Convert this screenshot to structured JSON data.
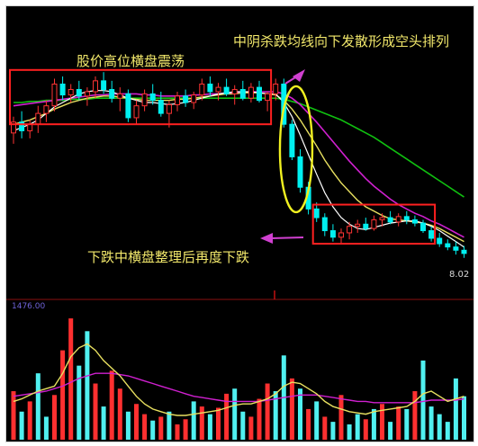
{
  "chart_data": [
    {
      "type": "candlestick",
      "annotations": {
        "top_left": "股价高位横盘震荡",
        "top_right": "中阴杀跌均线向下发散形成空头排列",
        "bottom": "下跌中横盘整理后再度下跌"
      },
      "price_label": "8.02",
      "colors": {
        "up": "#ff3333",
        "down": "#00f0f0",
        "ma_white": "#ffffff",
        "ma_yellow": "#e8e060",
        "ma_magenta": "#d020d0",
        "ma_green": "#10c010",
        "box": "#ff2020",
        "ellipse": "#f0f020",
        "arrow": "#d040d0"
      },
      "candles": [
        [
          9.1,
          9.25,
          9.0,
          9.2
        ],
        [
          9.2,
          9.3,
          9.05,
          9.12
        ],
        [
          9.12,
          9.22,
          9.05,
          9.18
        ],
        [
          9.18,
          9.35,
          9.1,
          9.28
        ],
        [
          9.28,
          9.4,
          9.2,
          9.35
        ],
        [
          9.35,
          9.6,
          9.3,
          9.55
        ],
        [
          9.55,
          9.62,
          9.4,
          9.45
        ],
        [
          9.45,
          9.55,
          9.38,
          9.5
        ],
        [
          9.5,
          9.58,
          9.4,
          9.44
        ],
        [
          9.44,
          9.52,
          9.35,
          9.48
        ],
        [
          9.48,
          9.62,
          9.42,
          9.58
        ],
        [
          9.58,
          9.66,
          9.46,
          9.5
        ],
        [
          9.5,
          9.58,
          9.38,
          9.42
        ],
        [
          9.42,
          9.52,
          9.3,
          9.46
        ],
        [
          9.46,
          9.5,
          9.2,
          9.24
        ],
        [
          9.24,
          9.4,
          9.18,
          9.35
        ],
        [
          9.35,
          9.5,
          9.3,
          9.46
        ],
        [
          9.46,
          9.55,
          9.36,
          9.4
        ],
        [
          9.4,
          9.48,
          9.25,
          9.28
        ],
        [
          9.28,
          9.4,
          9.15,
          9.36
        ],
        [
          9.36,
          9.48,
          9.3,
          9.44
        ],
        [
          9.44,
          9.5,
          9.34,
          9.38
        ],
        [
          9.38,
          9.48,
          9.32,
          9.45
        ],
        [
          9.45,
          9.6,
          9.4,
          9.55
        ],
        [
          9.55,
          9.62,
          9.44,
          9.48
        ],
        [
          9.48,
          9.56,
          9.4,
          9.52
        ],
        [
          9.52,
          9.6,
          9.44,
          9.46
        ],
        [
          9.46,
          9.54,
          9.36,
          9.5
        ],
        [
          9.5,
          9.58,
          9.4,
          9.42
        ],
        [
          9.42,
          9.56,
          9.38,
          9.52
        ],
        [
          9.52,
          9.58,
          9.38,
          9.4
        ],
        [
          9.4,
          9.48,
          9.3,
          9.46
        ],
        [
          9.46,
          9.6,
          9.4,
          9.55
        ],
        [
          9.55,
          9.6,
          9.15,
          9.18
        ],
        [
          9.18,
          9.22,
          8.85,
          8.88
        ],
        [
          8.88,
          8.95,
          8.55,
          8.6
        ],
        [
          8.6,
          8.65,
          8.35,
          8.4
        ],
        [
          8.4,
          8.46,
          8.28,
          8.32
        ],
        [
          8.32,
          8.36,
          8.15,
          8.2
        ],
        [
          8.2,
          8.26,
          8.1,
          8.14
        ],
        [
          8.14,
          8.22,
          8.08,
          8.18
        ],
        [
          8.18,
          8.28,
          8.12,
          8.24
        ],
        [
          8.24,
          8.3,
          8.18,
          8.26
        ],
        [
          8.26,
          8.32,
          8.2,
          8.22
        ],
        [
          8.22,
          8.34,
          8.2,
          8.3
        ],
        [
          8.3,
          8.36,
          8.24,
          8.32
        ],
        [
          8.32,
          8.38,
          8.26,
          8.28
        ],
        [
          8.28,
          8.36,
          8.24,
          8.33
        ],
        [
          8.33,
          8.38,
          8.26,
          8.3
        ],
        [
          8.3,
          8.34,
          8.24,
          8.27
        ],
        [
          8.27,
          8.3,
          8.18,
          8.2
        ],
        [
          8.2,
          8.24,
          8.1,
          8.13
        ],
        [
          8.13,
          8.18,
          8.05,
          8.08
        ],
        [
          8.08,
          8.12,
          8.02,
          8.05
        ],
        [
          8.05,
          8.1,
          7.98,
          8.02
        ],
        [
          8.02,
          8.06,
          7.95,
          7.99
        ]
      ],
      "ma_white": [
        9.12,
        9.15,
        9.18,
        9.22,
        9.28,
        9.34,
        9.38,
        9.42,
        9.46,
        9.48,
        9.49,
        9.49,
        9.48,
        9.45,
        9.42,
        9.4,
        9.38,
        9.38,
        9.37,
        9.36,
        9.37,
        9.38,
        9.4,
        9.42,
        9.44,
        9.46,
        9.47,
        9.48,
        9.48,
        9.48,
        9.47,
        9.46,
        9.46,
        9.38,
        9.25,
        9.08,
        8.9,
        8.72,
        8.55,
        8.42,
        8.32,
        8.26,
        8.22,
        8.21,
        8.23,
        8.25,
        8.27,
        8.28,
        8.29,
        8.29,
        8.27,
        8.24,
        8.2,
        8.15,
        8.1,
        8.05
      ],
      "ma_yellow": [
        9.18,
        9.2,
        9.22,
        9.25,
        9.28,
        9.32,
        9.35,
        9.38,
        9.4,
        9.42,
        9.43,
        9.44,
        9.44,
        9.43,
        9.42,
        9.41,
        9.4,
        9.4,
        9.4,
        9.4,
        9.41,
        9.41,
        9.42,
        9.43,
        9.44,
        9.45,
        9.46,
        9.46,
        9.47,
        9.47,
        9.47,
        9.46,
        9.45,
        9.4,
        9.32,
        9.22,
        9.1,
        8.98,
        8.85,
        8.74,
        8.64,
        8.56,
        8.48,
        8.42,
        8.38,
        8.34,
        8.31,
        8.3,
        8.29,
        8.28,
        8.27,
        8.25,
        8.22,
        8.18,
        8.14,
        8.1
      ],
      "ma_magenta": [
        9.35,
        9.36,
        9.37,
        9.38,
        9.39,
        9.4,
        9.41,
        9.42,
        9.43,
        9.44,
        9.45,
        9.45,
        9.46,
        9.46,
        9.46,
        9.46,
        9.45,
        9.45,
        9.44,
        9.44,
        9.44,
        9.44,
        9.45,
        9.45,
        9.46,
        9.46,
        9.47,
        9.47,
        9.47,
        9.48,
        9.48,
        9.48,
        9.48,
        9.46,
        9.42,
        9.36,
        9.28,
        9.2,
        9.11,
        9.02,
        8.93,
        8.84,
        8.76,
        8.68,
        8.61,
        8.55,
        8.49,
        8.44,
        8.4,
        8.36,
        8.33,
        8.29,
        8.26,
        8.22,
        8.18,
        8.14
      ],
      "ma_green": [
        9.38,
        9.38,
        9.39,
        9.39,
        9.4,
        9.4,
        9.4,
        9.41,
        9.41,
        9.41,
        9.42,
        9.42,
        9.42,
        9.42,
        9.42,
        9.42,
        9.42,
        9.42,
        9.42,
        9.42,
        9.42,
        9.42,
        9.42,
        9.42,
        9.42,
        9.42,
        9.42,
        9.42,
        9.42,
        9.42,
        9.42,
        9.42,
        9.42,
        9.41,
        9.39,
        9.37,
        9.34,
        9.31,
        9.28,
        9.25,
        9.22,
        9.18,
        9.14,
        9.1,
        9.06,
        9.01,
        8.96,
        8.91,
        8.86,
        8.81,
        8.76,
        8.71,
        8.66,
        8.61,
        8.56,
        8.51
      ]
    },
    {
      "type": "bar",
      "label": "1476.00",
      "volume": [
        [
          38,
          "u"
        ],
        [
          22,
          "d"
        ],
        [
          30,
          "u"
        ],
        [
          52,
          "d"
        ],
        [
          18,
          "d"
        ],
        [
          35,
          "u"
        ],
        [
          70,
          "u"
        ],
        [
          95,
          "u"
        ],
        [
          58,
          "d"
        ],
        [
          85,
          "d"
        ],
        [
          44,
          "u"
        ],
        [
          26,
          "d"
        ],
        [
          54,
          "u"
        ],
        [
          40,
          "u"
        ],
        [
          22,
          "d"
        ],
        [
          28,
          "u"
        ],
        [
          20,
          "u"
        ],
        [
          15,
          "d"
        ],
        [
          18,
          "u"
        ],
        [
          22,
          "d"
        ],
        [
          12,
          "u"
        ],
        [
          16,
          "u"
        ],
        [
          30,
          "d"
        ],
        [
          26,
          "u"
        ],
        [
          20,
          "d"
        ],
        [
          25,
          "u"
        ],
        [
          36,
          "u"
        ],
        [
          40,
          "d"
        ],
        [
          22,
          "d"
        ],
        [
          18,
          "u"
        ],
        [
          32,
          "u"
        ],
        [
          44,
          "u"
        ],
        [
          38,
          "d"
        ],
        [
          66,
          "d"
        ],
        [
          48,
          "u"
        ],
        [
          40,
          "d"
        ],
        [
          24,
          "u"
        ],
        [
          30,
          "d"
        ],
        [
          18,
          "u"
        ],
        [
          14,
          "d"
        ],
        [
          35,
          "u"
        ],
        [
          12,
          "d"
        ],
        [
          20,
          "d"
        ],
        [
          16,
          "u"
        ],
        [
          24,
          "d"
        ],
        [
          28,
          "u"
        ],
        [
          14,
          "d"
        ],
        [
          26,
          "u"
        ],
        [
          24,
          "d"
        ],
        [
          38,
          "u"
        ],
        [
          62,
          "d"
        ],
        [
          26,
          "d"
        ],
        [
          20,
          "d"
        ],
        [
          14,
          "d"
        ],
        [
          48,
          "d"
        ],
        [
          34,
          "d"
        ]
      ],
      "ma_yellow": [
        30,
        32,
        35,
        38,
        40,
        42,
        52,
        65,
        72,
        75,
        70,
        62,
        56,
        50,
        42,
        34,
        28,
        24,
        22,
        20,
        19,
        19,
        20,
        21,
        22,
        23,
        25,
        27,
        28,
        28,
        30,
        32,
        36,
        42,
        45,
        44,
        40,
        36,
        30,
        26,
        24,
        22,
        21,
        20,
        22,
        23,
        24,
        25,
        26,
        30,
        36,
        38,
        34,
        30,
        32,
        34
      ],
      "ma_magenta": [
        34,
        35,
        36,
        37,
        38,
        40,
        42,
        45,
        48,
        50,
        52,
        52,
        52,
        51,
        50,
        48,
        46,
        44,
        42,
        40,
        38,
        36,
        34,
        33,
        32,
        31,
        30,
        30,
        30,
        30,
        30,
        31,
        32,
        33,
        34,
        35,
        35,
        35,
        34,
        33,
        32,
        31,
        30,
        30,
        29,
        29,
        29,
        29,
        29,
        29,
        30,
        31,
        31,
        31,
        31,
        32
      ]
    }
  ]
}
